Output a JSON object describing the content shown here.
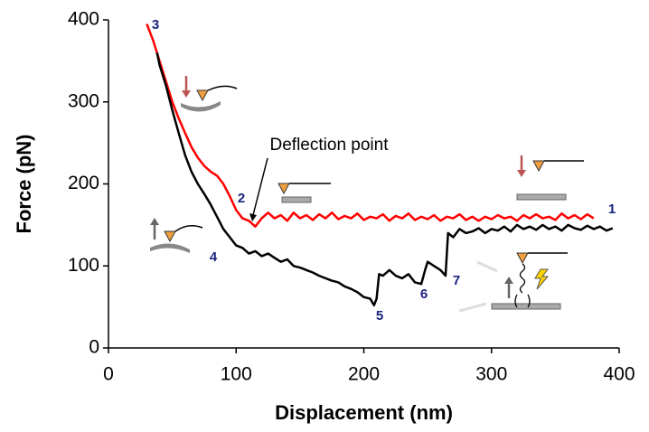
{
  "chart_data": {
    "type": "line",
    "xlabel": "Displacement (nm)",
    "ylabel": "Force (pN)",
    "xlim": [
      0,
      400
    ],
    "ylim": [
      0,
      400
    ],
    "xticks": [
      0,
      100,
      200,
      300,
      400
    ],
    "yticks": [
      0,
      100,
      200,
      300,
      400
    ],
    "series": [
      {
        "color": "#ff0000",
        "x": [
          30,
          35,
          40,
          45,
          50,
          55,
          60,
          65,
          70,
          75,
          80,
          85,
          90,
          95,
          100,
          105,
          110,
          115,
          120,
          125,
          130,
          135,
          140,
          145,
          150,
          155,
          160,
          165,
          170,
          175,
          180,
          185,
          190,
          195,
          200,
          205,
          210,
          215,
          220,
          225,
          230,
          235,
          240,
          245,
          250,
          255,
          260,
          265,
          270,
          275,
          280,
          285,
          290,
          295,
          300,
          305,
          310,
          315,
          320,
          325,
          330,
          335,
          340,
          345,
          350,
          355,
          360,
          365,
          370,
          375,
          380
        ],
        "values": [
          395,
          375,
          350,
          325,
          300,
          280,
          262,
          245,
          232,
          222,
          215,
          210,
          200,
          185,
          168,
          158,
          155,
          148,
          158,
          165,
          158,
          162,
          155,
          165,
          158,
          162,
          156,
          163,
          158,
          165,
          157,
          161,
          158,
          164,
          156,
          160,
          158,
          163,
          155,
          161,
          158,
          164,
          156,
          160,
          157,
          162,
          155,
          160,
          158,
          163,
          156,
          160,
          155,
          160,
          157,
          162,
          158,
          160,
          155,
          162,
          158,
          163,
          158,
          160,
          156,
          164,
          158,
          162,
          157,
          163,
          158
        ]
      },
      {
        "color": "#000000",
        "x": [
          38,
          40,
          45,
          50,
          55,
          60,
          65,
          70,
          75,
          80,
          85,
          90,
          95,
          100,
          105,
          110,
          115,
          120,
          125,
          130,
          135,
          140,
          145,
          150,
          155,
          160,
          165,
          170,
          175,
          180,
          185,
          190,
          195,
          200,
          205,
          208,
          210,
          212,
          215,
          220,
          225,
          230,
          235,
          240,
          245,
          248,
          250,
          255,
          260,
          264,
          266,
          270,
          275,
          280,
          285,
          290,
          295,
          300,
          305,
          310,
          315,
          320,
          325,
          330,
          335,
          340,
          345,
          350,
          355,
          360,
          365,
          370,
          375,
          380,
          385,
          390,
          395
        ],
        "values": [
          360,
          345,
          320,
          290,
          262,
          235,
          215,
          200,
          188,
          175,
          160,
          145,
          135,
          125,
          122,
          115,
          118,
          112,
          115,
          110,
          105,
          108,
          100,
          98,
          95,
          92,
          88,
          85,
          82,
          80,
          75,
          72,
          68,
          62,
          60,
          52,
          60,
          90,
          88,
          95,
          88,
          85,
          90,
          80,
          78,
          95,
          105,
          100,
          95,
          88,
          140,
          135,
          145,
          140,
          142,
          146,
          140,
          145,
          143,
          148,
          142,
          150,
          145,
          148,
          144,
          150,
          145,
          148,
          143,
          150,
          146,
          144,
          149,
          145,
          148,
          143,
          146
        ]
      }
    ],
    "annotations": [
      "1",
      "2",
      "3",
      "4",
      "5",
      "6",
      "7",
      "Deflection point"
    ]
  }
}
